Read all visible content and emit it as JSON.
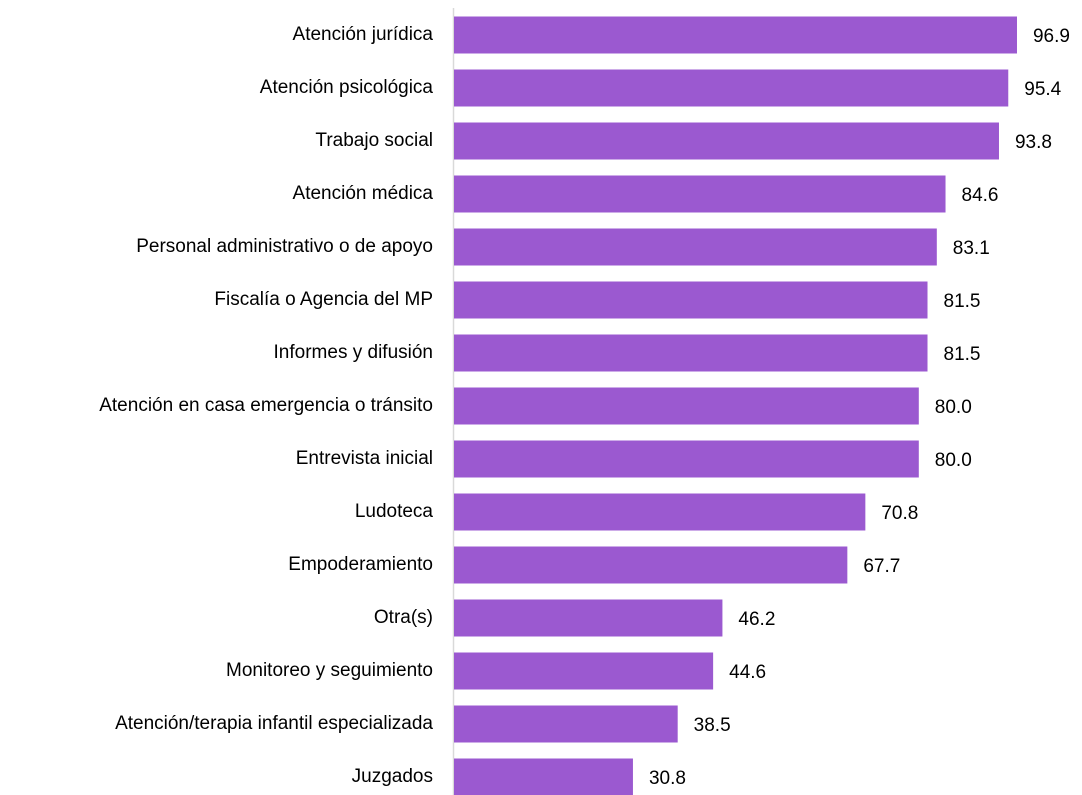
{
  "chart_data": {
    "type": "bar",
    "orientation": "horizontal",
    "color": "#9b59d0",
    "categories": [
      "Atención jurídica",
      "Atención psicológica",
      "Trabajo social",
      "Atención médica",
      "Personal administrativo o de apoyo",
      "Fiscalía o Agencia del MP",
      "Informes y difusión",
      "Atención en casa emergencia o tránsito",
      "Entrevista inicial",
      "Ludoteca",
      "Empoderamiento",
      "Otra(s)",
      "Monitoreo y seguimiento",
      "Atención/terapia infantil especializada",
      "Juzgados"
    ],
    "values": [
      96.9,
      95.4,
      93.8,
      84.6,
      83.1,
      81.5,
      81.5,
      80.0,
      80.0,
      70.8,
      67.7,
      46.2,
      44.6,
      38.5,
      30.8
    ],
    "value_labels": [
      "96.9",
      "95.4",
      "93.8",
      "84.6",
      "83.1",
      "81.5",
      "81.5",
      "80.0",
      "80.0",
      "70.8",
      "67.7",
      "46.2",
      "44.6",
      "38.5",
      "30.8"
    ]
  }
}
